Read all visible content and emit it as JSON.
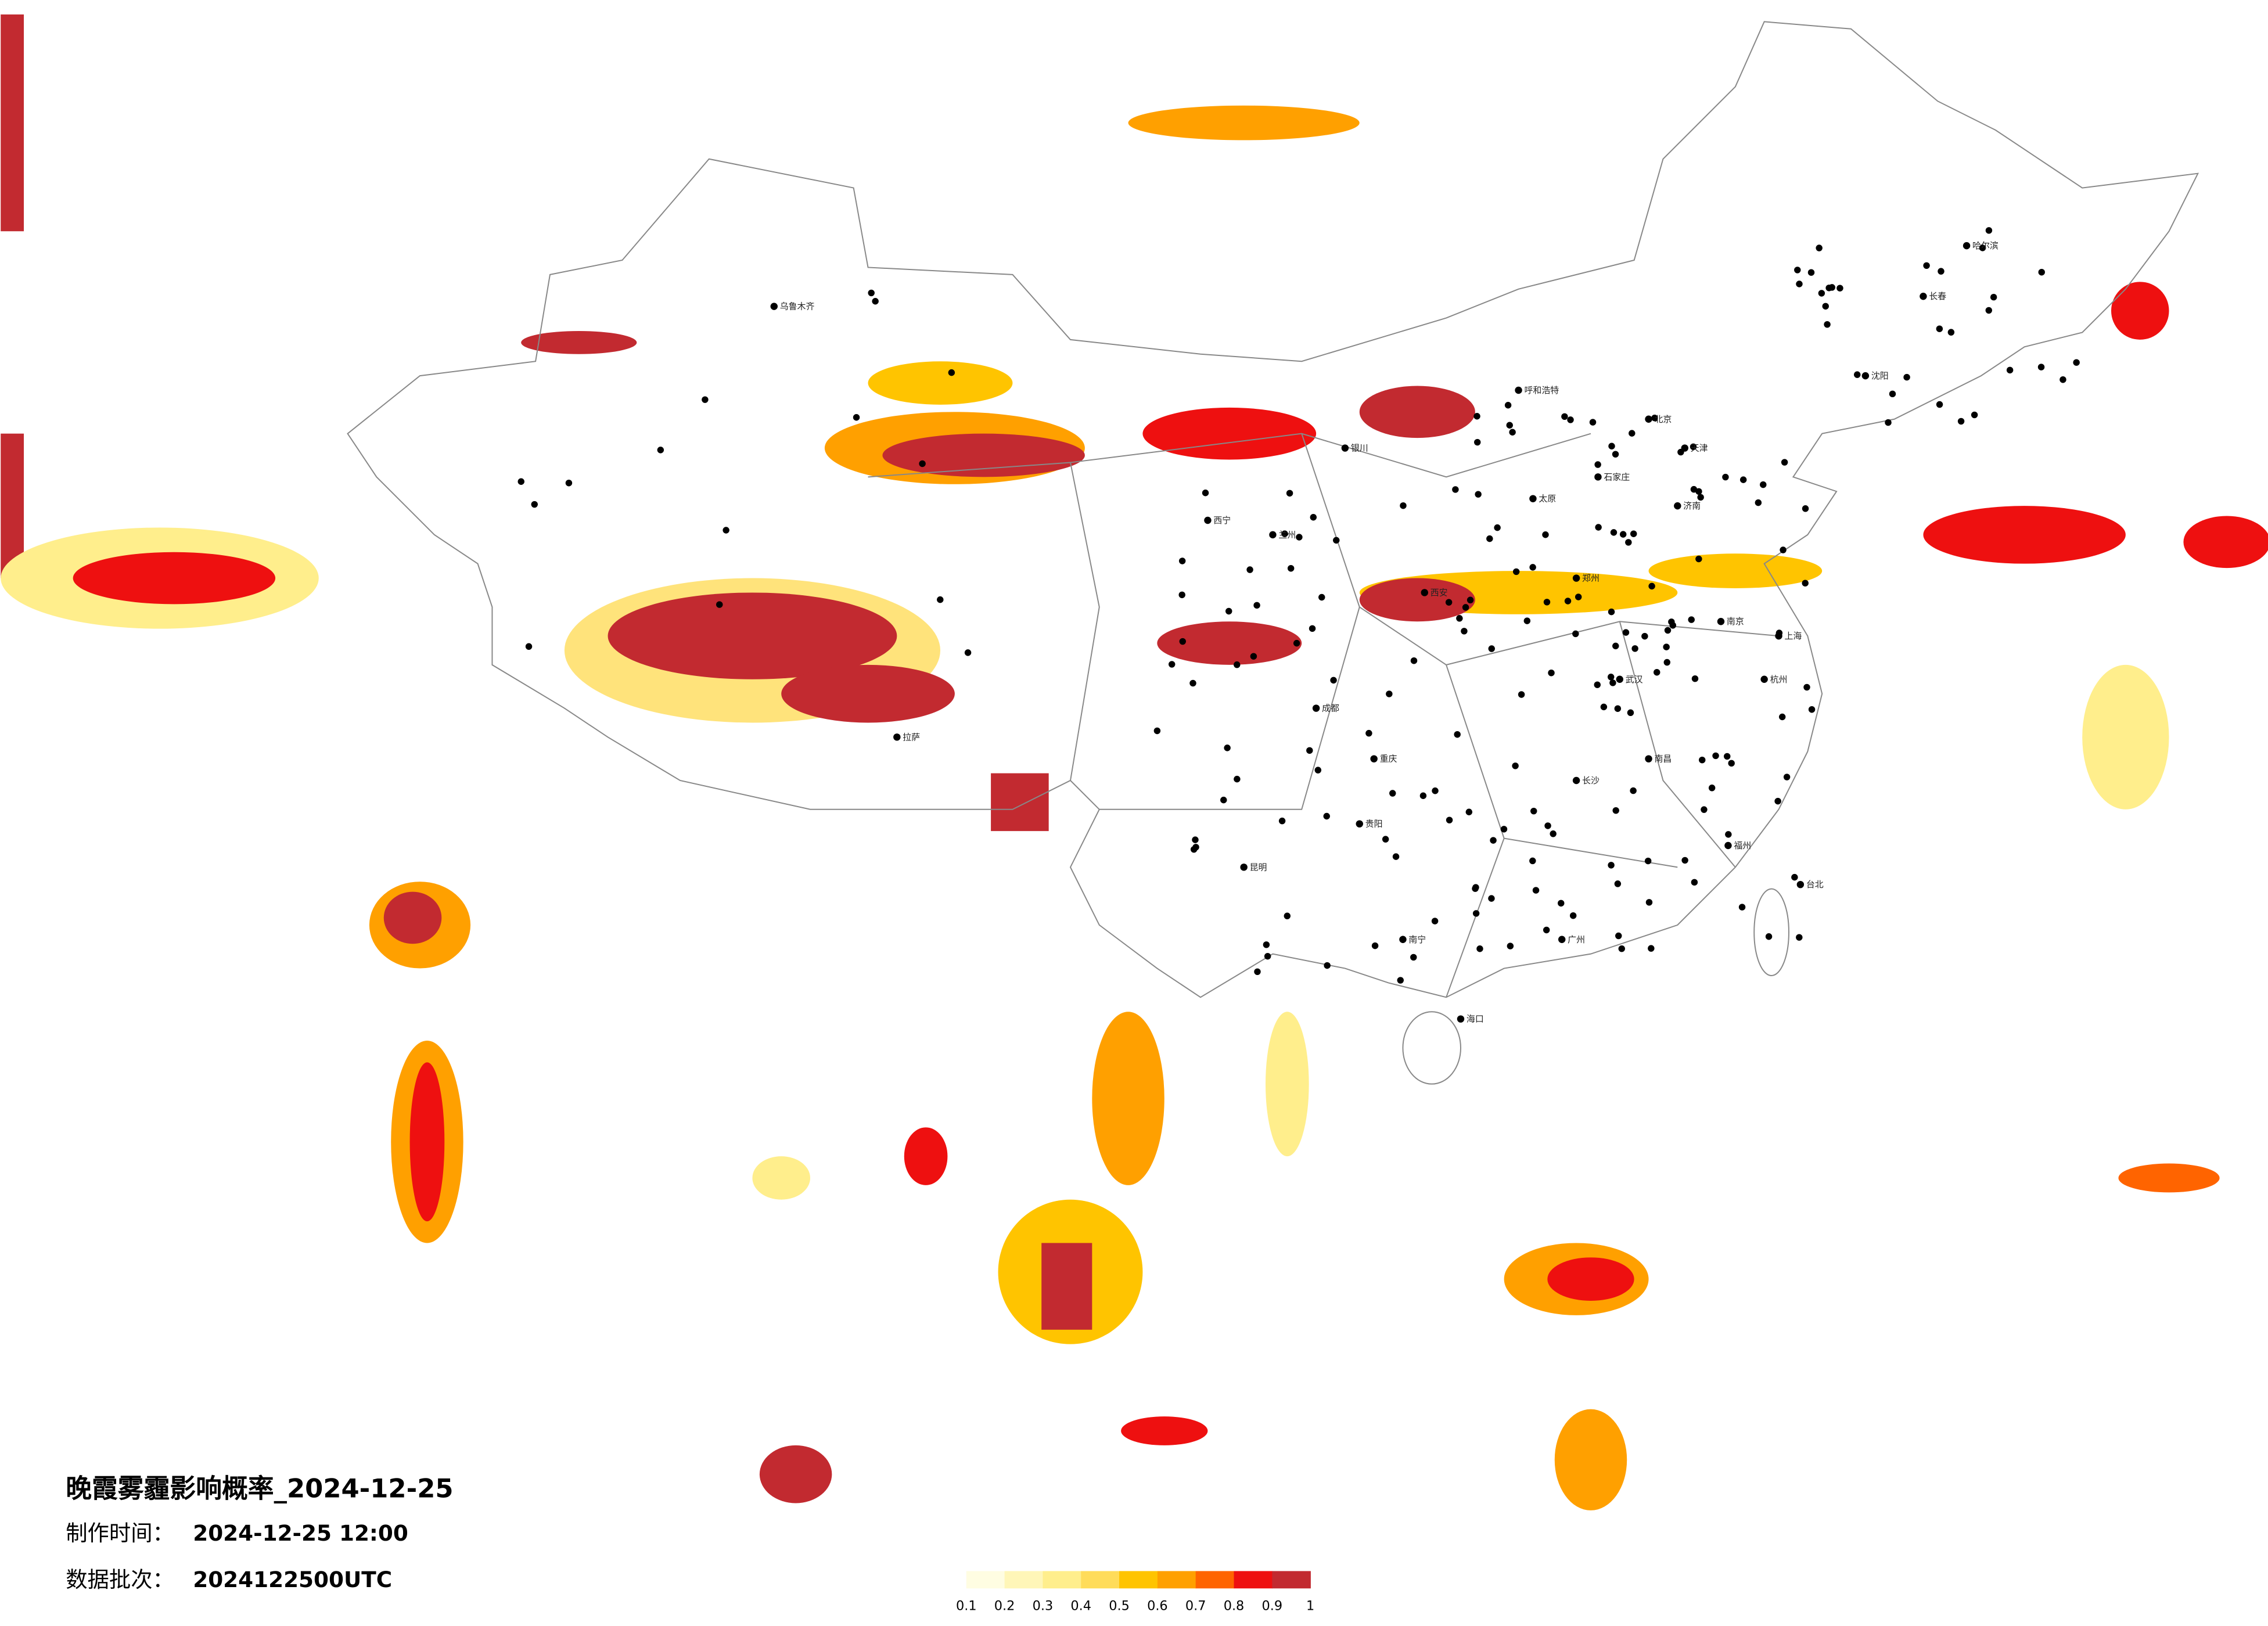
{
  "title": "晚霞雾霾影响概率_2024-12-25",
  "info": [
    {
      "label": "制作时间：",
      "value": "2024-12-25 12:00"
    },
    {
      "label": "数据批次：",
      "value": "2024122500UTC"
    }
  ],
  "colorbar": {
    "ticks": [
      0.1,
      0.2,
      0.3,
      0.4,
      0.5,
      0.6,
      0.7,
      0.8,
      0.9,
      1
    ],
    "colors": [
      "#fffde2",
      "#fff6b8",
      "#ffee8c",
      "#ffdc5a",
      "#ffc400",
      "#ffa000",
      "#ff6400",
      "#ee1010",
      "#c22a30"
    ]
  },
  "cities": [
    "北京",
    "天津",
    "石家庄",
    "太原",
    "郑州",
    "武汉",
    "长沙",
    "广州",
    "上海",
    "南京",
    "杭州",
    "成都",
    "重庆",
    "西安",
    "兰州",
    "西宁",
    "拉萨",
    "乌鲁木齐",
    "哈尔滨",
    "长春",
    "沈阳",
    "呼和浩特",
    "昆明",
    "贵阳",
    "南宁",
    "海口",
    "福州",
    "南昌",
    "济南",
    "银川",
    "台北"
  ]
}
